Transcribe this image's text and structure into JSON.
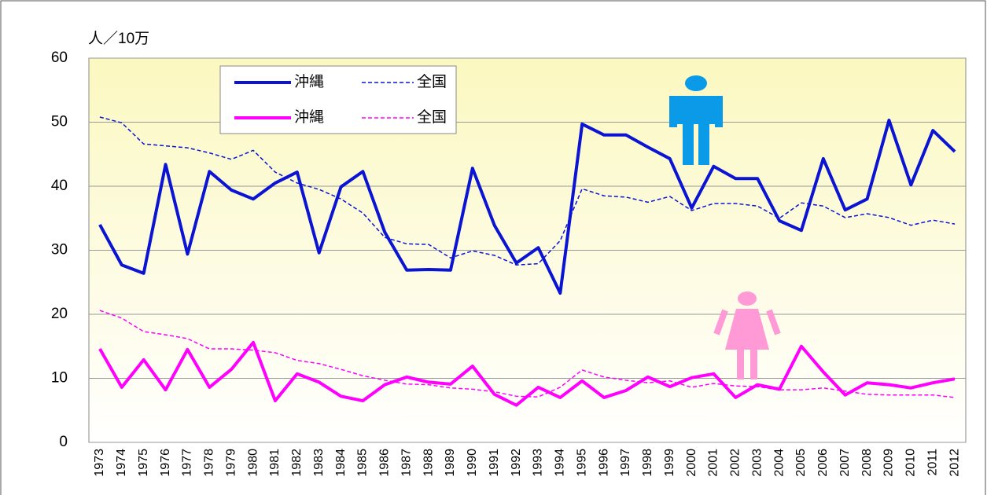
{
  "chart_data": {
    "type": "line",
    "y_label": "人／10万",
    "categories": [
      "1973",
      "1974",
      "1975",
      "1976",
      "1977",
      "1978",
      "1979",
      "1980",
      "1981",
      "1982",
      "1983",
      "1984",
      "1985",
      "1986",
      "1987",
      "1988",
      "1989",
      "1990",
      "1991",
      "1992",
      "1993",
      "1994",
      "1995",
      "1996",
      "1997",
      "1998",
      "1999",
      "2000",
      "2001",
      "2002",
      "2003",
      "2004",
      "2005",
      "2006",
      "2007",
      "2008",
      "2009",
      "2010",
      "2011",
      "2012"
    ],
    "series": [
      {
        "name": "沖縄",
        "color": "#0a14d2",
        "dashed": false,
        "values": [
          34.0,
          27.7,
          26.4,
          43.4,
          29.4,
          42.3,
          39.4,
          38.0,
          40.5,
          42.2,
          29.6,
          39.9,
          42.3,
          32.8,
          26.9,
          27.0,
          26.9,
          42.8,
          33.9,
          28.0,
          30.4,
          23.3,
          49.7,
          48.0,
          48.0,
          46.1,
          44.3,
          36.6,
          43.1,
          41.2,
          41.2,
          34.6,
          33.1,
          44.3,
          36.3,
          38.0,
          50.3,
          40.2,
          48.7,
          45.4
        ]
      },
      {
        "name": "全国",
        "color": "#0a14d2",
        "dashed": true,
        "values": [
          50.8,
          49.9,
          46.6,
          46.3,
          46.0,
          45.2,
          44.2,
          45.6,
          42.2,
          40.5,
          39.5,
          38.0,
          35.8,
          32.0,
          31.0,
          30.9,
          28.8,
          29.9,
          29.2,
          27.7,
          27.9,
          31.5,
          39.6,
          38.5,
          38.3,
          37.5,
          38.4,
          36.2,
          37.3,
          37.3,
          36.9,
          35.0,
          37.4,
          36.9,
          35.1,
          35.7,
          35.1,
          33.9,
          34.7,
          34.1
        ]
      },
      {
        "name": "沖縄",
        "color": "#ff00ff",
        "dashed": false,
        "values": [
          14.6,
          8.6,
          12.9,
          8.2,
          14.5,
          8.6,
          11.4,
          15.6,
          6.5,
          10.7,
          9.4,
          7.2,
          6.5,
          9.0,
          10.2,
          9.4,
          9.1,
          11.9,
          7.5,
          5.8,
          8.6,
          7.0,
          9.6,
          7.0,
          8.1,
          10.2,
          8.7,
          10.1,
          10.7,
          7.0,
          9.0,
          8.3,
          15.0,
          11.0,
          7.4,
          9.3,
          9.0,
          8.5,
          9.3,
          9.9
        ]
      },
      {
        "name": "全国",
        "color": "#ff00ff",
        "dashed": true,
        "values": [
          20.6,
          19.4,
          17.3,
          16.8,
          16.2,
          14.6,
          14.6,
          14.4,
          14.0,
          12.8,
          12.3,
          11.4,
          10.4,
          9.7,
          9.1,
          9.0,
          8.5,
          8.3,
          7.9,
          7.2,
          7.1,
          8.6,
          11.3,
          10.2,
          9.7,
          9.3,
          9.6,
          8.6,
          9.2,
          8.8,
          8.7,
          8.2,
          8.2,
          8.5,
          8.0,
          7.5,
          7.4,
          7.4,
          7.4,
          7.0
        ]
      }
    ],
    "ylim": [
      0,
      60
    ],
    "yticks": [
      0,
      10,
      20,
      30,
      40,
      50,
      60
    ],
    "grid": true
  }
}
